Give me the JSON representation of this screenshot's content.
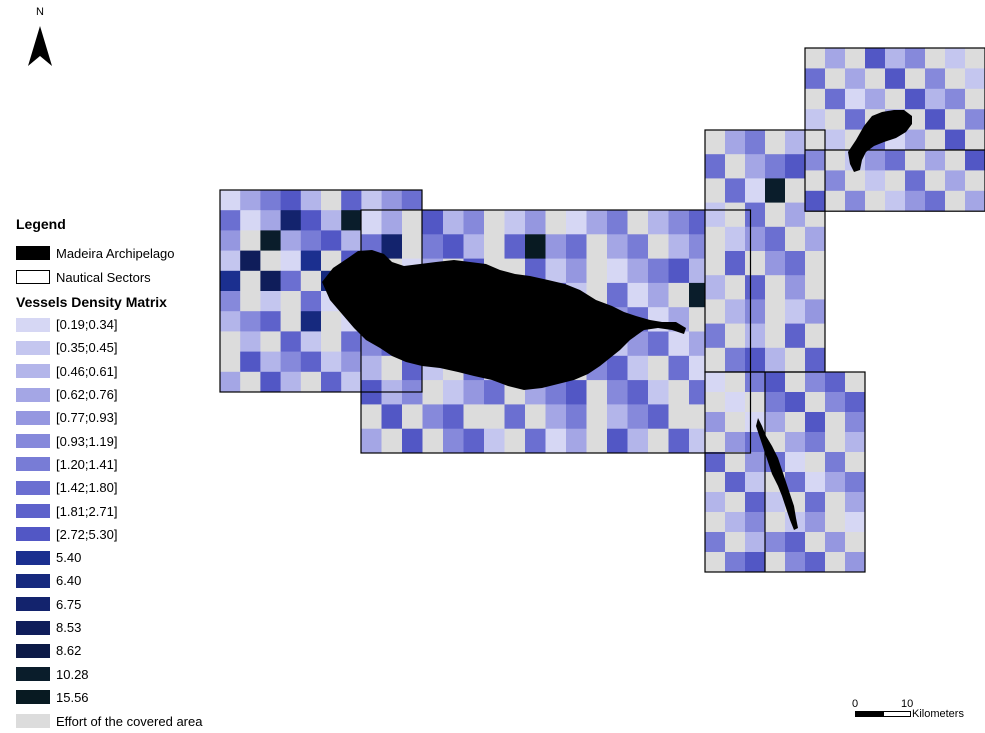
{
  "north_arrow": {
    "label": "N"
  },
  "legend": {
    "title": "Legend",
    "items": [
      {
        "label": "Madeira Archipelago",
        "fill": "#000000"
      },
      {
        "label": "Nautical Sectors",
        "fill": "#ffffff"
      }
    ],
    "density_title": "Vessels Density Matrix",
    "density_classes": [
      {
        "label": "[0.19;0.34]",
        "color": "#d6d7f4"
      },
      {
        "label": "[0.35;0.45]",
        "color": "#c4c6ef"
      },
      {
        "label": "[0.46;0.61]",
        "color": "#b3b5ea"
      },
      {
        "label": "[0.62;0.76]",
        "color": "#a4a6e5"
      },
      {
        "label": "[0.77;0.93]",
        "color": "#9597e0"
      },
      {
        "label": "[0.93;1.19]",
        "color": "#8689db"
      },
      {
        "label": "[1.20;1.41]",
        "color": "#787cd6"
      },
      {
        "label": "[1.42;1.80]",
        "color": "#6b6fd1"
      },
      {
        "label": "[1.81;2.71]",
        "color": "#5e62cb"
      },
      {
        "label": "[2.72;5.30]",
        "color": "#5257c5"
      },
      {
        "label": "5.40",
        "color": "#1b2f8f"
      },
      {
        "label": "6.40",
        "color": "#16297e"
      },
      {
        "label": "6.75",
        "color": "#13236d"
      },
      {
        "label": "8.53",
        "color": "#0f1d5a"
      },
      {
        "label": "8.62",
        "color": "#0c1a47"
      },
      {
        "label": "10.28",
        "color": "#0a1d2b"
      },
      {
        "label": "15.56",
        "color": "#081a22"
      }
    ],
    "effort": {
      "label": "Effort of the covered area",
      "color": "#dcdcdc"
    }
  },
  "scale_bar": {
    "zero": "0",
    "ten": "10",
    "units": "Kilometers"
  },
  "map": {
    "effort_color": "#dcdcdc",
    "empty_color": "#ffffff",
    "sector_border": "#000000",
    "island_color": "#000000",
    "sectors": [
      {
        "name": "western-sector",
        "rows": [
          ".....E....",
          "...3..2E.E",
          ".E2.......",
          ".7E.4E.E.E",
          "4E7.E6E4E.",
          ".E.E..BE.E",
          "...E6E..6.",
          "E.E..E.L.E",
          "E......E..",
          ".E..E..E.."
        ]
      },
      {
        "name": "main-sector",
        "rows": [
          "..E...E..E...E.....",
          ".3E...E.1..E..E..E.",
          ".E..E.EE...E.......",
          "E.E.E...E..E...E2..",
          ".E.E...E..E.....E..",
          ".........E.E.......",
          ".E..E..E..E...E...E",
          "...E...E...E...E...",
          "E.E..EE.E..E...EE.E",
          ".E.E...E...E..E...E"
        ]
      },
      {
        "name": "east-sector",
        "rows": [
          "E..E.4",
          ".E...E",
          "E..2E.",
          ".E.E.E",
          "E...E.",
          "E.E..E",
          ".E.E.E",
          "E..E..",
          ".E.E.E",
          "E...E."
        ]
      },
      {
        "name": "north-east-sector",
        "rows": [
          "E.E...E.E",
          ".E.E.E.E.",
          "E...E...E",
          ".E.E.E.E.",
          "E.E...E.E",
          ".E...E.E.",
          "E.E.E.E.E",
          ".E.E...E."
        ]
      },
      {
        "name": "south-east-sector",
        "rows": [
          ".E..E..E",
          "E.E..E..",
          ".E..E.E.",
          "E..E..E.",
          ".E...E.E",
          "E..E....",
          ".E..E.E.",
          "E..E..E.",
          ".E...E.E",
          "E..E..E."
        ]
      }
    ]
  }
}
